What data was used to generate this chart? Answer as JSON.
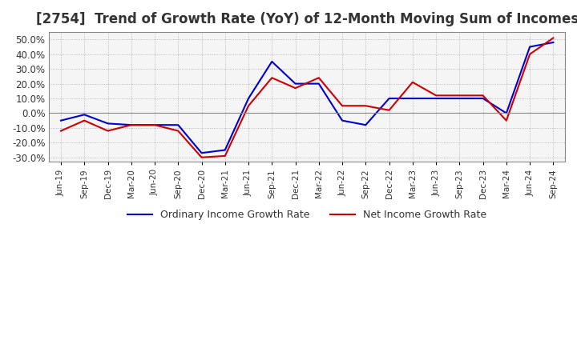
{
  "title": "[2754]  Trend of Growth Rate (YoY) of 12-Month Moving Sum of Incomes",
  "title_fontsize": 12,
  "ylim": [
    -33,
    55
  ],
  "yticks": [
    -30,
    -20,
    -10,
    0,
    10,
    20,
    30,
    40,
    50
  ],
  "background_color": "#ffffff",
  "grid_color": "#aaaaaa",
  "plot_bg_color": "#f5f5f5",
  "ordinary_color": "#0000cc",
  "net_color": "#cc0000",
  "legend_ordinary": "Ordinary Income Growth Rate",
  "legend_net": "Net Income Growth Rate",
  "dates": [
    "Jun-19",
    "Sep-19",
    "Dec-19",
    "Mar-20",
    "Jun-20",
    "Sep-20",
    "Dec-20",
    "Mar-21",
    "Jun-21",
    "Sep-21",
    "Dec-21",
    "Mar-22",
    "Jun-22",
    "Sep-22",
    "Dec-22",
    "Mar-23",
    "Jun-23",
    "Sep-23",
    "Dec-23",
    "Mar-24",
    "Jun-24",
    "Sep-24"
  ],
  "ordinary_values": [
    -5,
    -1,
    -7,
    -8,
    -8,
    -8,
    -27,
    -25,
    10,
    35,
    20,
    20,
    -5,
    -8,
    10,
    10,
    10,
    10,
    10,
    0,
    45,
    48
  ],
  "net_values": [
    -12,
    -5,
    -12,
    -8,
    -8,
    -12,
    -30,
    -29,
    5,
    24,
    17,
    24,
    5,
    5,
    2,
    21,
    12,
    12,
    12,
    -5,
    40,
    51
  ]
}
